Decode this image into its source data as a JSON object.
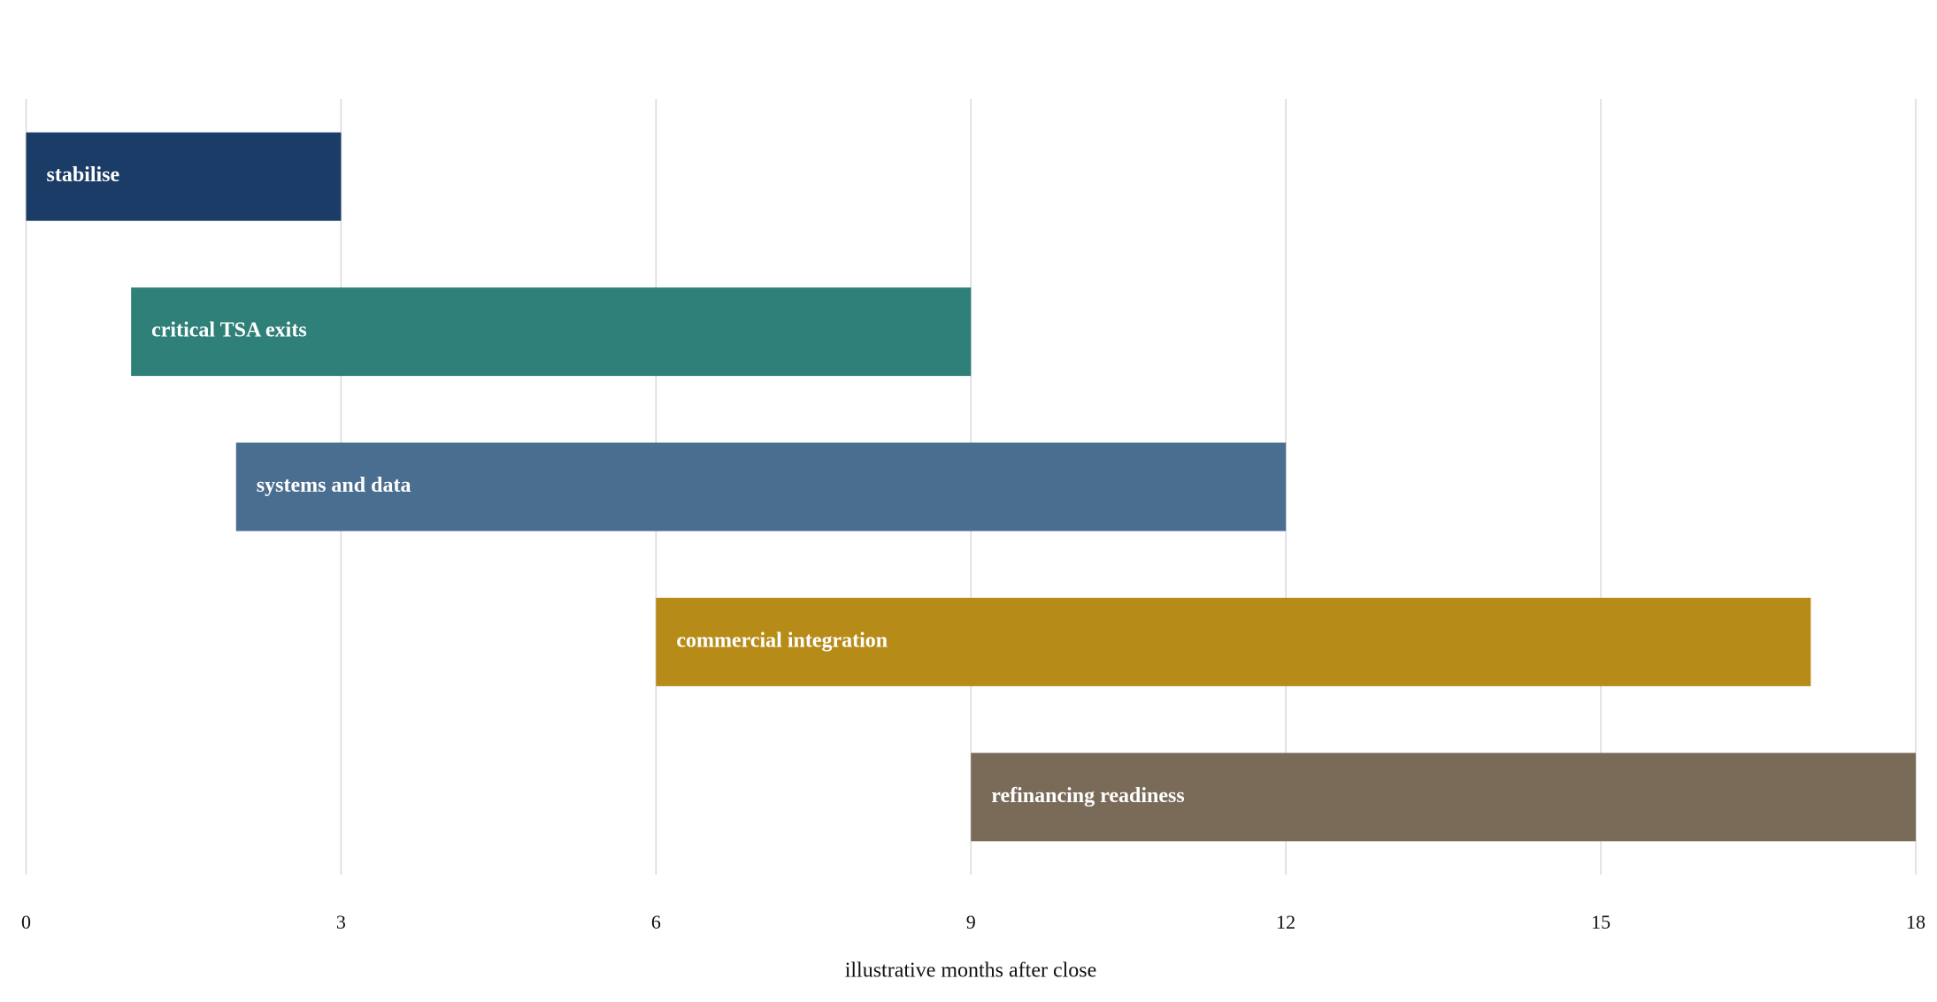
{
  "chart_data": {
    "type": "gantt",
    "categories": [
      "stabilise",
      "critical TSA exits",
      "systems and data",
      "commercial integration",
      "refinancing readiness"
    ],
    "start": [
      0,
      1,
      2,
      6,
      9
    ],
    "end": [
      3,
      9,
      12,
      17,
      18
    ],
    "colors": [
      "#1a3c66",
      "#2e8078",
      "#4a6e90",
      "#b78b18",
      "#7a6a58"
    ],
    "xlim": [
      0,
      18
    ],
    "xticks": [
      0,
      3,
      6,
      9,
      12,
      15,
      18
    ],
    "xlabel": "illustrative months after close",
    "grid": true
  }
}
